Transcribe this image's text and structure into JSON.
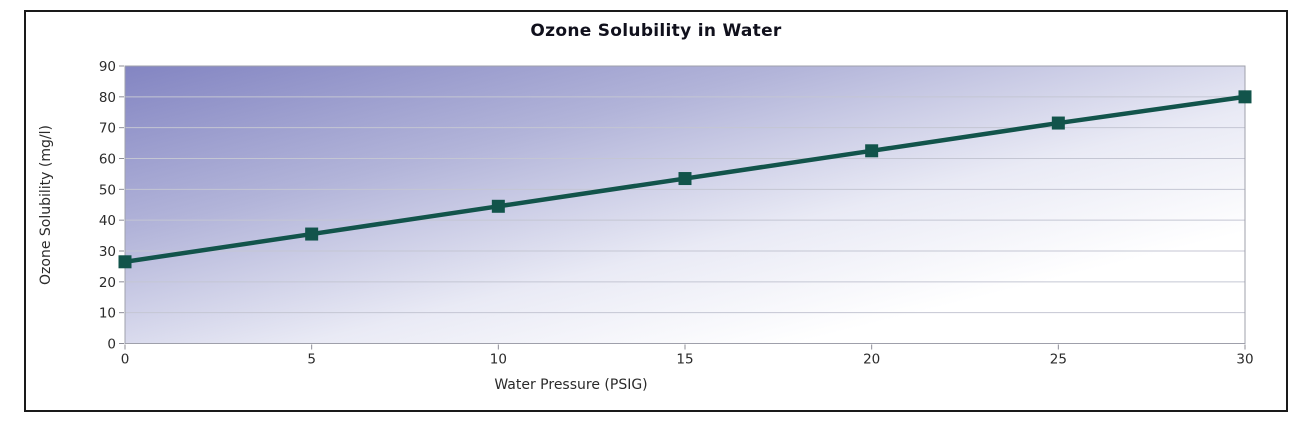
{
  "window": {
    "background": "#ffffff",
    "frame_border_color": "#1a1a1a"
  },
  "chart_data": {
    "type": "line",
    "title": "Ozone Solubility in Water",
    "xlabel": "Water Pressure (PSIG)",
    "ylabel": "Ozone Solubility (mg/l)",
    "x": [
      0,
      5,
      10,
      15,
      20,
      25,
      30
    ],
    "series": [
      {
        "name": "Ozone Solubility",
        "values": [
          26.5,
          35.5,
          44.5,
          53.5,
          62.5,
          71.5,
          80
        ]
      }
    ],
    "xlim": [
      0,
      30
    ],
    "ylim": [
      0,
      90
    ],
    "xticks": [
      0,
      5,
      10,
      15,
      20,
      25,
      30
    ],
    "yticks": [
      0,
      10,
      20,
      30,
      40,
      50,
      60,
      70,
      80,
      90
    ],
    "grid": "horizontal-only",
    "legend_position": "none",
    "marker_style": "filled-square",
    "colors": {
      "series": "#12544b",
      "title_text": "#10101c",
      "axis_text": "#2b2b2b",
      "gridline": "#c4c6d3",
      "plot_border": "#9fa0ab",
      "tick": "#8c8c96",
      "plot_gradient": [
        {
          "offset": 0,
          "color": "#8385c2"
        },
        {
          "offset": 0.3,
          "color": "#b2b4d9"
        },
        {
          "offset": 0.58,
          "color": "#e9eaf5"
        },
        {
          "offset": 0.8,
          "color": "#ffffff"
        }
      ]
    }
  }
}
